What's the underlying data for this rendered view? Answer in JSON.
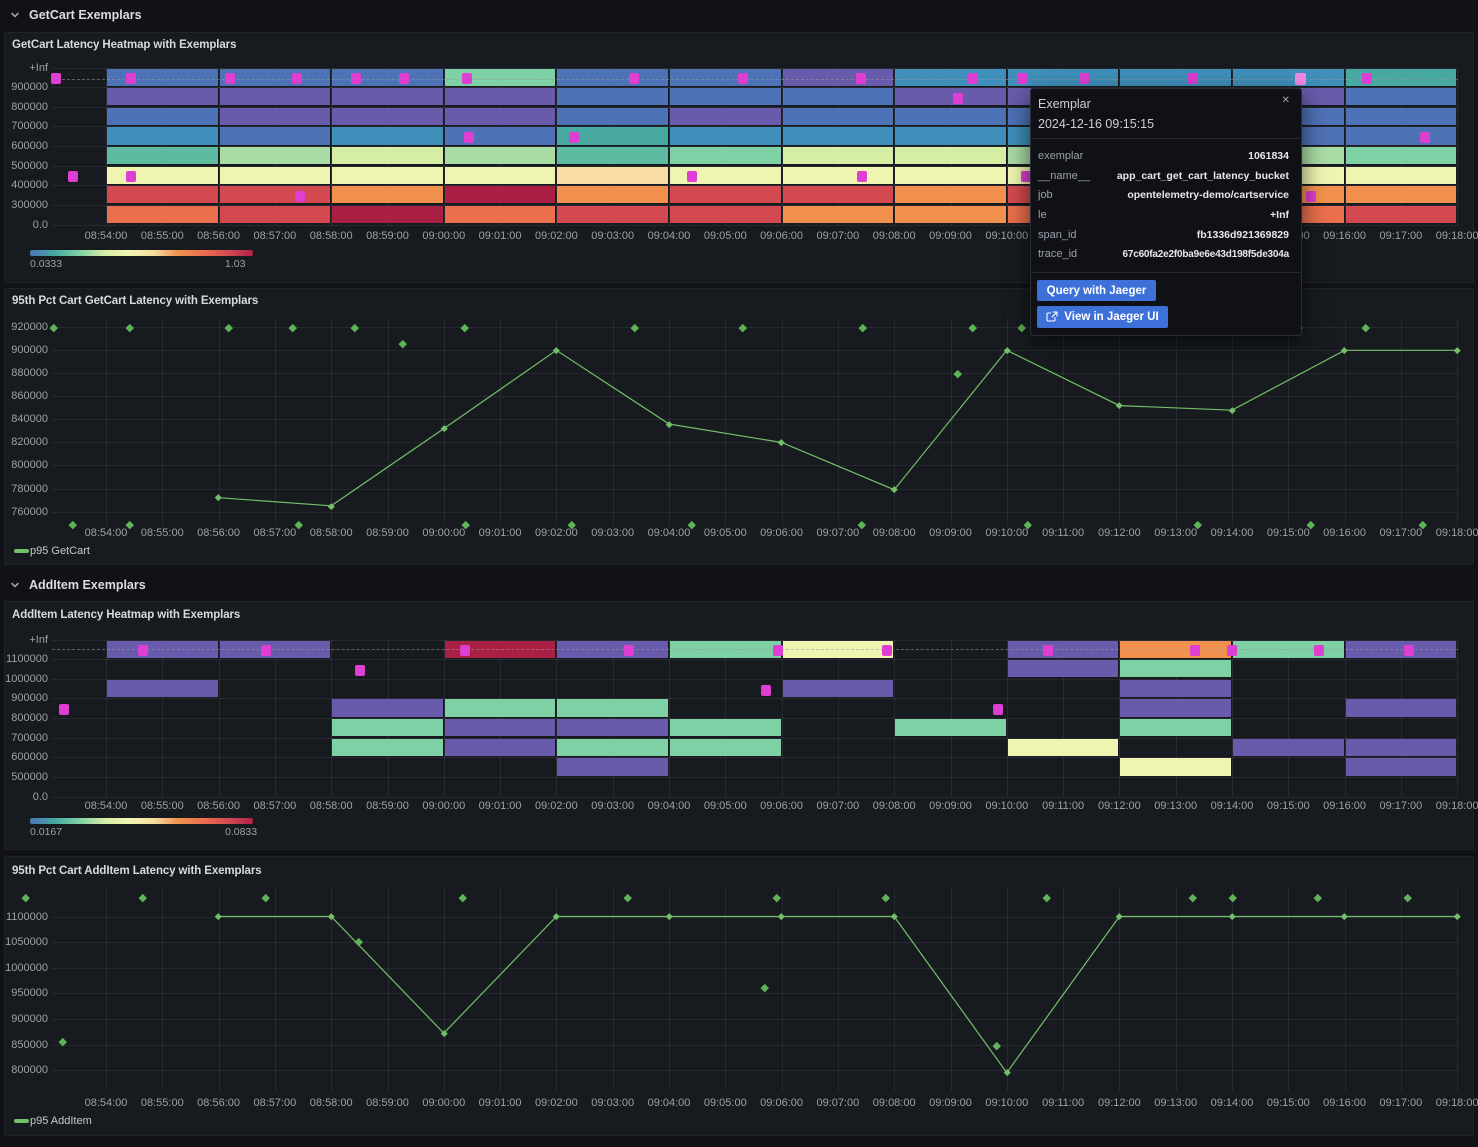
{
  "page": {
    "background": "#111217"
  },
  "sections": [
    {
      "label": "GetCart Exemplars"
    },
    {
      "label": "AddItem Exemplars"
    }
  ],
  "x_axis_labels": [
    "08:54:00",
    "08:55:00",
    "08:56:00",
    "08:57:00",
    "08:58:00",
    "08:59:00",
    "09:00:00",
    "09:01:00",
    "09:02:00",
    "09:03:00",
    "09:04:00",
    "09:05:00",
    "09:06:00",
    "09:07:00",
    "09:08:00",
    "09:09:00",
    "09:10:00",
    "09:11:00",
    "09:12:00",
    "09:13:00",
    "09:14:00",
    "09:15:00",
    "09:16:00",
    "09:17:00",
    "09:18:00"
  ],
  "colors": {
    "exemplar": "#de3ed2",
    "exemplar_highlight": "#f089e6",
    "series_green": "#73bf69",
    "exemplar_diamond": "#5fb457"
  },
  "palette": {
    "pu": "#685bab",
    "bl": "#4e72b6",
    "sb": "#3f8fba",
    "te": "#48a9a2",
    "tg": "#5cbba0",
    "gr": "#7ed1a4",
    "lg": "#a9dba4",
    "yg": "#d6eda4",
    "py": "#eff5b1",
    "po": "#f7dda2",
    "or": "#f2914e",
    "oR": "#ea6f4d",
    "re": "#d24a50",
    "cr": "#aa2045"
  },
  "legend_gradient": [
    "#4e72b6",
    "#48a9a2",
    "#7ed1a4",
    "#d6eda4",
    "#eff5b1",
    "#f7dda2",
    "#f2914e",
    "#ea6f4d",
    "#d24a50",
    "#b02347"
  ],
  "chart_data": [
    {
      "type": "heatmap",
      "title": "GetCart Latency Heatmap with Exemplars",
      "y_axis_labels": [
        "+Inf",
        "900000",
        "800000",
        "700000",
        "600000",
        "500000",
        "400000",
        "300000",
        "0.0"
      ],
      "column_minutes": 2,
      "columns": [
        {
          "start_minute": 0,
          "cells": [
            "bl",
            "pu",
            "bl",
            "sb",
            "tg",
            "py",
            "re",
            "oR"
          ]
        },
        {
          "start_minute": 2,
          "cells": [
            "bl",
            "pu",
            "pu",
            "bl",
            "lg",
            "py",
            "re",
            "re"
          ]
        },
        {
          "start_minute": 4,
          "cells": [
            "bl",
            "pu",
            "pu",
            "sb",
            "yg",
            "py",
            "or",
            "cr"
          ]
        },
        {
          "start_minute": 6,
          "cells": [
            "gr",
            "pu",
            "pu",
            "bl",
            "lg",
            "py",
            "cr",
            "oR"
          ]
        },
        {
          "start_minute": 8,
          "cells": [
            "bl",
            "bl",
            "bl",
            "te",
            "tg",
            "po",
            "or",
            "re"
          ]
        },
        {
          "start_minute": 10,
          "cells": [
            "bl",
            "bl",
            "pu",
            "sb",
            "gr",
            "py",
            "re",
            "re"
          ]
        },
        {
          "start_minute": 12,
          "cells": [
            "pu",
            "bl",
            "bl",
            "sb",
            "yg",
            "py",
            "re",
            "or"
          ]
        },
        {
          "start_minute": 14,
          "cells": [
            "sb",
            "pu",
            "bl",
            "sb",
            "yg",
            "py",
            "or",
            "or"
          ]
        },
        {
          "start_minute": 16,
          "cells": [
            "sb",
            "pu",
            "bl",
            "sb",
            "lg",
            "py",
            "re",
            "oR"
          ]
        },
        {
          "start_minute": 18,
          "cells": [
            "sb",
            "bl",
            "pu",
            "sb",
            "gr",
            "py",
            "or",
            "re"
          ]
        },
        {
          "start_minute": 20,
          "cells": [
            "sb",
            "pu",
            "bl",
            "bl",
            "lg",
            "py",
            "or",
            "oR"
          ]
        },
        {
          "start_minute": 22,
          "cells": [
            "te",
            "bl",
            "bl",
            "bl",
            "gr",
            "py",
            "or",
            "re"
          ]
        }
      ],
      "exemplars": [
        {
          "m": -0.89,
          "row": 0
        },
        {
          "m": 0.44,
          "row": 0
        },
        {
          "m": 2.2,
          "row": 0
        },
        {
          "m": 3.39,
          "row": 0
        },
        {
          "m": 4.44,
          "row": 0
        },
        {
          "m": 5.29,
          "row": 0
        },
        {
          "m": 6.41,
          "row": 0
        },
        {
          "m": 9.38,
          "row": 0
        },
        {
          "m": 11.31,
          "row": 0
        },
        {
          "m": 13.41,
          "row": 0
        },
        {
          "m": 15.4,
          "row": 0
        },
        {
          "m": 16.27,
          "row": 0
        },
        {
          "m": 17.37,
          "row": 0
        },
        {
          "m": 19.31,
          "row": 0
        },
        {
          "m": 22.4,
          "row": 0
        },
        {
          "m": 15.13,
          "row": 1
        },
        {
          "m": 6.45,
          "row": 3
        },
        {
          "m": 8.31,
          "row": 3
        },
        {
          "m": 23.43,
          "row": 3
        },
        {
          "m": -0.59,
          "row": 5
        },
        {
          "m": 0.44,
          "row": 5
        },
        {
          "m": 10.41,
          "row": 5
        },
        {
          "m": 13.43,
          "row": 5
        },
        {
          "m": 16.34,
          "row": 5
        },
        {
          "m": 3.45,
          "row": 6
        },
        {
          "m": 21.4,
          "row": 6
        }
      ],
      "highlight_exemplar": {
        "m": 21.22,
        "row": 0
      },
      "legend": {
        "min": "0.0333",
        "max": "1.03"
      }
    },
    {
      "type": "line",
      "title": "95th Pct Cart GetCart Latency with Exemplars",
      "series_label": "p95 GetCart",
      "y_ticks": [
        920000,
        900000,
        880000,
        860000,
        840000,
        820000,
        800000,
        780000,
        760000
      ],
      "points": [
        [
          2,
          772000
        ],
        [
          4,
          765000
        ],
        [
          6,
          832000
        ],
        [
          8,
          900000
        ],
        [
          10,
          836000
        ],
        [
          12,
          820000
        ],
        [
          14,
          779000
        ],
        [
          16,
          900000
        ],
        [
          18,
          852000
        ],
        [
          20,
          848000
        ],
        [
          22,
          900000
        ],
        [
          24,
          900000
        ]
      ],
      "exemplars": [
        [
          -0.92,
          919400
        ],
        [
          0.43,
          919400
        ],
        [
          2.18,
          919400
        ],
        [
          3.32,
          919400
        ],
        [
          4.42,
          919400
        ],
        [
          6.38,
          919400
        ],
        [
          9.4,
          919400
        ],
        [
          11.31,
          919400
        ],
        [
          13.44,
          919400
        ],
        [
          15.4,
          919400
        ],
        [
          16.27,
          919400
        ],
        [
          21.19,
          919400
        ],
        [
          22.38,
          919400
        ],
        [
          5.27,
          905500
        ],
        [
          15.13,
          879400
        ],
        [
          -0.59,
          748700
        ],
        [
          0.43,
          748700
        ],
        [
          3.43,
          748700
        ],
        [
          6.39,
          748700
        ],
        [
          8.28,
          748700
        ],
        [
          10.41,
          748700
        ],
        [
          13.43,
          748700
        ],
        [
          16.38,
          748700
        ],
        [
          19.4,
          748700
        ],
        [
          21.4,
          748700
        ],
        [
          23.39,
          748700
        ]
      ]
    },
    {
      "type": "heatmap",
      "title": "AddItem Latency Heatmap with Exemplars",
      "y_axis_labels": [
        "+Inf",
        "1100000",
        "1000000",
        "900000",
        "800000",
        "700000",
        "600000",
        "500000",
        "0.0"
      ],
      "column_minutes": 2,
      "columns": [
        {
          "start_minute": 0,
          "cells": [
            "pu",
            null,
            "pu",
            null,
            null,
            null,
            null,
            null
          ]
        },
        {
          "start_minute": 2,
          "cells": [
            "pu",
            null,
            null,
            null,
            null,
            null,
            null,
            null
          ]
        },
        {
          "start_minute": 4,
          "cells": [
            null,
            null,
            null,
            "pu",
            "gr",
            "gr",
            null,
            null
          ]
        },
        {
          "start_minute": 6,
          "cells": [
            "cr",
            null,
            null,
            "gr",
            "pu",
            "pu",
            null,
            null
          ]
        },
        {
          "start_minute": 8,
          "cells": [
            "pu",
            null,
            null,
            "gr",
            "pu",
            "gr",
            "pu",
            null
          ]
        },
        {
          "start_minute": 10,
          "cells": [
            "gr",
            null,
            null,
            null,
            "gr",
            "gr",
            null,
            null
          ]
        },
        {
          "start_minute": 12,
          "cells": [
            "py",
            null,
            "pu",
            null,
            null,
            null,
            null,
            null
          ]
        },
        {
          "start_minute": 14,
          "cells": [
            null,
            null,
            null,
            null,
            "gr",
            null,
            null,
            null
          ]
        },
        {
          "start_minute": 16,
          "cells": [
            "pu",
            "pu",
            null,
            null,
            null,
            "py",
            null,
            null
          ]
        },
        {
          "start_minute": 18,
          "cells": [
            "or",
            "gr",
            "pu",
            "pu",
            "gr",
            null,
            "py",
            null
          ]
        },
        {
          "start_minute": 20,
          "cells": [
            "gr",
            null,
            null,
            null,
            null,
            "pu",
            null,
            null
          ]
        },
        {
          "start_minute": 22,
          "cells": [
            "pu",
            null,
            null,
            "pu",
            null,
            "pu",
            "pu",
            null
          ]
        }
      ],
      "exemplars": [
        {
          "m": 0.66,
          "row": 0
        },
        {
          "m": 2.84,
          "row": 0
        },
        {
          "m": 6.38,
          "row": 0
        },
        {
          "m": 9.29,
          "row": 0
        },
        {
          "m": 11.93,
          "row": 0
        },
        {
          "m": 13.87,
          "row": 0
        },
        {
          "m": 16.73,
          "row": 0
        },
        {
          "m": 19.34,
          "row": 0
        },
        {
          "m": 20.0,
          "row": 0
        },
        {
          "m": 21.54,
          "row": 0
        },
        {
          "m": 23.14,
          "row": 0
        },
        {
          "m": 4.51,
          "row": 1
        },
        {
          "m": 11.72,
          "row": 2
        },
        {
          "m": -0.75,
          "row": 3
        },
        {
          "m": 15.84,
          "row": 3
        }
      ],
      "legend": {
        "min": "0.0167",
        "max": "0.0833"
      }
    },
    {
      "type": "line",
      "title": "95th Pct Cart AddItem Latency with Exemplars",
      "series_label": "p95 AddItem",
      "y_ticks": [
        1100000,
        1050000,
        1000000,
        950000,
        900000,
        850000,
        800000
      ],
      "points": [
        [
          2,
          1100000
        ],
        [
          4,
          1100000
        ],
        [
          6,
          872000
        ],
        [
          8,
          1100000
        ],
        [
          10,
          1100000
        ],
        [
          12,
          1100000
        ],
        [
          14,
          1100000
        ],
        [
          16,
          795000
        ],
        [
          18,
          1100000
        ],
        [
          20,
          1100000
        ],
        [
          22,
          1100000
        ],
        [
          24,
          1100000
        ]
      ],
      "exemplars": [
        [
          -1.42,
          1136000
        ],
        [
          0.66,
          1136000
        ],
        [
          2.84,
          1136000
        ],
        [
          6.34,
          1136000
        ],
        [
          9.27,
          1136000
        ],
        [
          11.92,
          1136000
        ],
        [
          13.85,
          1136000
        ],
        [
          16.71,
          1136000
        ],
        [
          19.31,
          1136000
        ],
        [
          20.02,
          1136000
        ],
        [
          21.53,
          1136000
        ],
        [
          23.13,
          1136000
        ],
        [
          -0.76,
          854900
        ],
        [
          4.49,
          1050200
        ],
        [
          11.7,
          960400
        ],
        [
          15.83,
          847900
        ]
      ]
    }
  ],
  "tooltip": {
    "title": "Exemplar",
    "timestamp": "2024-12-16 09:15:15",
    "rows": [
      [
        "exemplar",
        "1061834"
      ],
      [
        "__name__",
        "app_cart_get_cart_latency_bucket"
      ],
      [
        "job",
        "opentelemetry-demo/cartservice"
      ],
      [
        "le",
        "+Inf"
      ],
      [
        "span_id",
        "fb1336d921369829"
      ],
      [
        "trace_id",
        "67c60fa2e2f0ba9e6e43d198f5de304a"
      ]
    ],
    "buttons": [
      {
        "label": "Query with Jaeger"
      },
      {
        "label": "View in Jaeger UI",
        "icon": "external-link"
      }
    ]
  }
}
